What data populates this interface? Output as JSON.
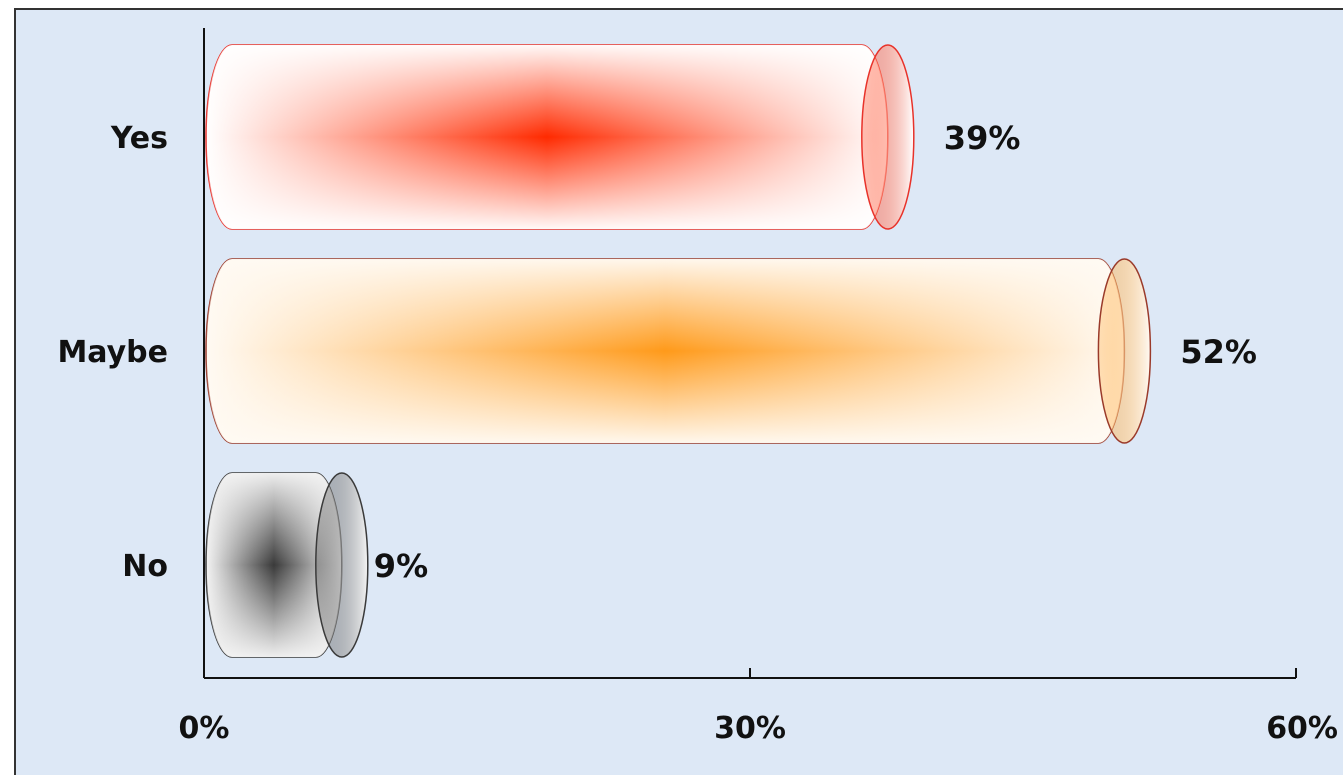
{
  "chart_data": {
    "type": "bar",
    "orientation": "horizontal",
    "style": "cylinder",
    "categories": [
      "Yes",
      "Maybe",
      "No"
    ],
    "values": [
      39,
      52,
      9
    ],
    "data_labels": [
      "39%",
      "52%",
      "9%"
    ],
    "xlim": [
      0,
      60
    ],
    "x_ticks": [
      0,
      30,
      60
    ],
    "x_tick_labels": [
      "0%",
      "30%",
      "60%"
    ],
    "grid": false,
    "legend": "none",
    "colors": {
      "Yes": {
        "center": "#ff2a00",
        "edge": "#ffffff",
        "stroke": "#e8322a"
      },
      "Maybe": {
        "center": "#ff9a1a",
        "edge": "#fffaf3",
        "stroke": "#9a3a2a"
      },
      "No": {
        "center": "#3a3a3a",
        "edge": "#f4f4f4",
        "stroke": "#3a3a3a"
      }
    },
    "background": "#dde8f6"
  }
}
